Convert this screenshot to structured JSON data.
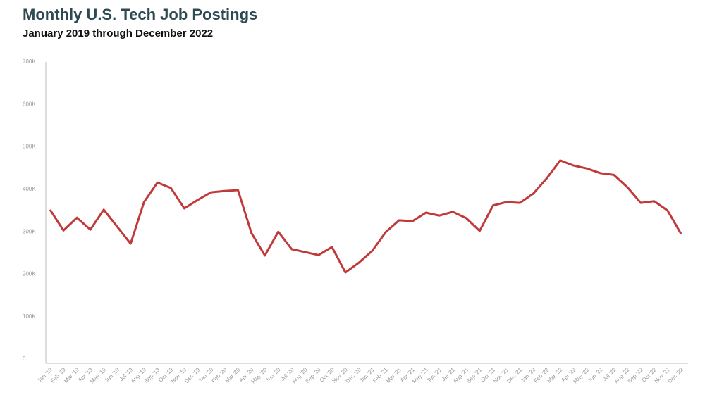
{
  "chart_data": {
    "type": "line",
    "title": "Monthly U.S. Tech Job Postings",
    "subtitle": "January 2019 through December 2022",
    "categories": [
      "Jan '19",
      "Feb '19",
      "Mar '19",
      "Apr '19",
      "May '19",
      "Jun '19",
      "Jul '19",
      "Aug '19",
      "Sep '19",
      "Oct '19",
      "Nov '19",
      "Dec '19",
      "Jan '20",
      "Feb '20",
      "Mar '20",
      "Apr '20",
      "May '20",
      "Jun '20",
      "Jul '20",
      "Aug '20",
      "Sep '20",
      "Oct '20",
      "Nov '20",
      "Dec '20",
      "Jan '21",
      "Feb '21",
      "Mar '21",
      "Apr '21",
      "May '21",
      "Jun '21",
      "Jul '21",
      "Aug '21",
      "Sep '21",
      "Oct '21",
      "Nov '21",
      "Dec '21",
      "Jan '22",
      "Feb '22",
      "Mar '22",
      "Apr '22",
      "May '22",
      "Jun '22",
      "Jul '22",
      "Aug '22",
      "Sep '22",
      "Oct '22",
      "Nov '22",
      "Dec '22"
    ],
    "series": [
      {
        "name": "Tech job postings",
        "color": "#c0393b",
        "values": [
          352000,
          303000,
          333000,
          305000,
          352000,
          312000,
          272000,
          370000,
          416000,
          403000,
          355000,
          375000,
          393000,
          396000,
          398000,
          297000,
          244000,
          300000,
          259000,
          252000,
          245000,
          264000,
          204000,
          227000,
          255000,
          299000,
          327000,
          325000,
          345000,
          338000,
          347000,
          332000,
          302000,
          362000,
          370000,
          368000,
          390000,
          426000,
          468000,
          456000,
          449000,
          438000,
          434000,
          405000,
          368000,
          372000,
          350000,
          295000
        ]
      }
    ],
    "ylim": [
      0,
      700000
    ],
    "yticks": [
      0,
      {
        "value": 100000,
        "label": "100K"
      },
      {
        "value": 200000,
        "label": "200K"
      },
      {
        "value": 300000,
        "label": "300K"
      },
      {
        "value": 400000,
        "label": "400K"
      },
      {
        "value": 500000,
        "label": "500K"
      },
      {
        "value": 600000,
        "label": "600K"
      },
      {
        "value": 700000,
        "label": "700K"
      }
    ],
    "grid": false
  }
}
